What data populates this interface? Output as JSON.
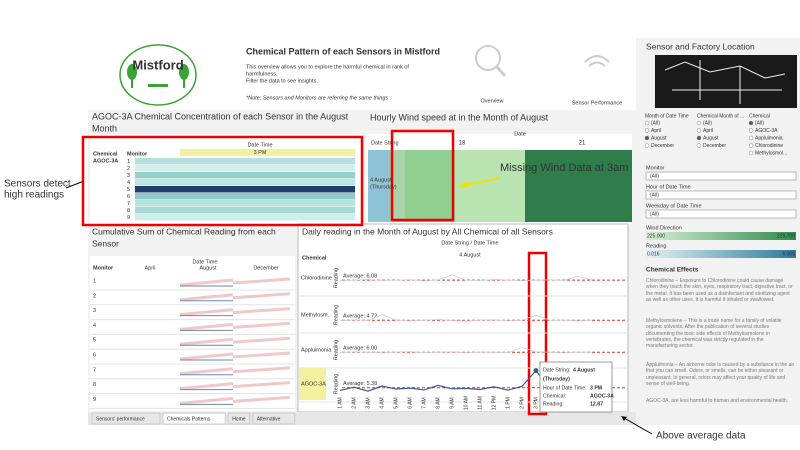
{
  "annotations": {
    "sensors": [
      "Sensors detect",
      "high readings"
    ],
    "above": "Above average data",
    "wind": "Missing Wind Data at 3am"
  },
  "header": {
    "logo": "Mistford",
    "title": "Chemical Pattern of each Sensors in Mistford",
    "description": [
      "This overview allows you to explore the harmful chemical in rank of",
      "harmfulness.",
      "Filter the data to see insights."
    ],
    "note": "*Note: Sensors and Monitors are referring the same things",
    "nav": [
      "Overview",
      "Sensor Performance"
    ]
  },
  "heatmap": {
    "title": [
      "AGOC-3A Chemical Concentration of each Sensor in the August",
      "Month"
    ],
    "column_header": "Date Time",
    "column": "3 PM",
    "row_headers": [
      "Chemical",
      "Monitor"
    ],
    "chemical": "AGOC-3A",
    "monitors": [
      1,
      2,
      3,
      4,
      5,
      6,
      7,
      8,
      9
    ],
    "row_colors": [
      "#b4e1dc",
      "#d3efeb",
      "#93d0cc",
      "#bfe5e2",
      "#1f3f6e",
      "#8ecac7",
      "#b9e3df",
      "#a7dad5",
      "#cdeeea"
    ]
  },
  "wind": {
    "title": "Hourly Wind speed at in the Month of August",
    "column_header": "Date",
    "row_header": "Date String",
    "dates": [
      18,
      21
    ],
    "row": [
      "4 August",
      "(Thursday)"
    ]
  },
  "cumulative": {
    "title": [
      "Cumulative Sum of Chemical Reading from each",
      "Sensor"
    ],
    "column_header": "Date Time",
    "row_header": "Monitor",
    "months": [
      "April",
      "August",
      "December"
    ],
    "monitors": [
      1,
      2,
      3,
      4,
      5,
      6,
      7,
      8,
      9
    ]
  },
  "daily": {
    "title": "Daily reading in the Month of August  by All Chemical of all Sensors",
    "column_header": "Date String / Date Time",
    "date": "4 August",
    "row_header": "Chemical",
    "axis_label": "Reading",
    "hours": [
      "1 AM",
      "2 AM",
      "3 AM",
      "4 AM",
      "5 AM",
      "6 AM",
      "7 AM",
      "8 AM",
      "9 AM",
      "10 AM",
      "11 AM",
      "12 PM",
      "1 PM",
      "2 PM",
      "3 PM",
      "4 PM",
      "5 PM",
      "6 PM",
      "7 PM"
    ],
    "ylim": [
      0,
      14
    ],
    "line_color": "#3b5b8c",
    "series": [
      {
        "name": "Chlorodinine",
        "average": 6.08,
        "average_label": "Average: 6.08",
        "values": [
          5.8,
          6.1,
          6.4,
          5.9,
          6.0,
          6.3,
          5.7,
          6.2,
          8.4,
          6.0,
          5.9,
          6.4,
          6.1,
          5.8,
          6.0,
          6.2,
          5.9,
          7.8,
          6.1
        ]
      },
      {
        "name": "Methylosm..",
        "average": 4.72,
        "average_label": "Average: 4.72",
        "values": [
          4.5,
          4.9,
          4.6,
          7.2,
          4.8,
          4.4,
          4.7,
          5.1,
          4.6,
          4.3,
          4.8,
          4.9,
          4.5,
          4.7,
          6.9,
          4.6,
          4.8,
          4.4,
          4.7
        ]
      },
      {
        "name": "Appluimonia",
        "average": 6.0,
        "average_label": "Average: 6.00",
        "values": [
          5.9,
          6.2,
          6.0,
          5.8,
          6.1,
          6.3,
          5.9,
          6.0,
          6.2,
          5.8,
          6.1,
          6.0,
          5.9,
          8.1,
          6.2,
          6.0,
          5.8,
          6.1,
          6.0
        ]
      },
      {
        "name": "AGOC-3A",
        "average": 5.38,
        "average_label": "Average: 5.38",
        "values": [
          4.2,
          5.6,
          3.9,
          6.1,
          4.8,
          5.2,
          4.4,
          6.4,
          4.9,
          5.1,
          4.6,
          5.8,
          4.3,
          6.0,
          12.87,
          5.1,
          4.8,
          5.3,
          4.9
        ]
      }
    ],
    "tooltip": {
      "date_key": "Date String:",
      "date": "4 August",
      "weekday": "(Thursday)",
      "rows": [
        [
          "Hour of Date Time:",
          "3 PM"
        ],
        [
          "Chemical:",
          "AGOC-3A"
        ],
        [
          "Reading:",
          "12.87"
        ]
      ]
    }
  },
  "sidebar": {
    "title": "Sensor and Factory Location",
    "filters": [
      {
        "header": "Month of Date Time",
        "options": [
          "(All)",
          "April",
          "August",
          "December"
        ],
        "selected": 2
      },
      {
        "header": "Chemical Month of ...",
        "options": [
          "(All)",
          "April",
          "August",
          "December"
        ],
        "selected": 2
      },
      {
        "header": "Chemical",
        "options": [
          "(All)",
          "AGOC-3A",
          "Appluimonia",
          "Chlorodinine",
          "Methylosmol..."
        ],
        "selected": 0
      }
    ],
    "dropdowns": [
      {
        "label": "Monitor",
        "value": "(All)"
      },
      {
        "label": "Hour of Date Time",
        "value": "(All)"
      },
      {
        "label": "Weekday of Date Time",
        "value": "(All)"
      }
    ],
    "legends": [
      {
        "label": "Wind Direction",
        "min": "225.000",
        "max": "229.700",
        "colors": [
          "#d8efd6",
          "#2e8b4e"
        ]
      },
      {
        "label": "Reading",
        "min": "0.016",
        "max": "6.005",
        "colors": [
          "#e3f3f3",
          "#2b7a9a"
        ]
      }
    ],
    "effects_title": "Chemical Effects",
    "effects": [
      "Chlorodinine – Exposure to Chlorodinine could cause damage when they touch the skin, eyes, respiratory tract, digestive tract, or the metal. It has been used as a disinfectant and sterilizing agent as well as other uses. It is harmful if inhaled or swallowed.",
      "Methylosmolene – This is a trade name for a family of volatile organic solvents. After the publication of several studies documenting the toxic side effects of Methylosmolene in vertebrates, the chemical was strictly regulated in the manufacturing sector.",
      "Appluimonia – An airborne odor is caused by a substance in the air that you can smell. Odors, or smells, can be either pleasant or unpleasant. In general, odors may affect your quality of life and sense of well-being.",
      "AGOC-3A, are less harmful to human and environmental health."
    ]
  },
  "tabs": [
    "Sensors' performance",
    "Chemicals Patterns",
    "Home",
    "Alternative"
  ]
}
